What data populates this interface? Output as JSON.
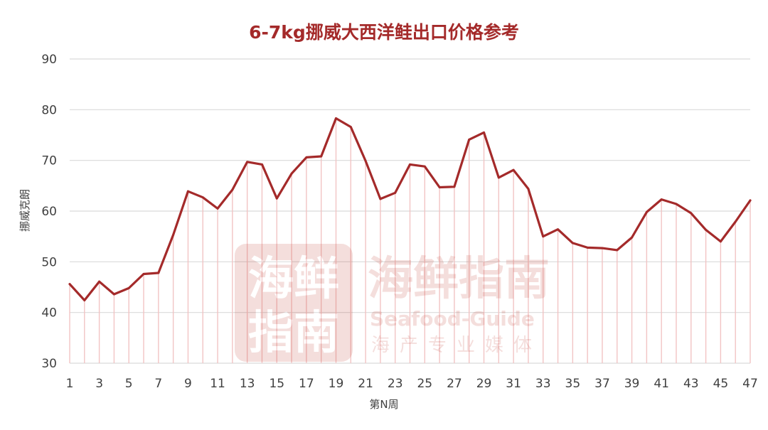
{
  "chart_data": {
    "type": "line",
    "title": "6-7kg挪威大西洋鲑出口价格参考",
    "xlabel": "第N周",
    "ylabel": "挪威克朗",
    "ylim": [
      30,
      90
    ],
    "yticks": [
      30,
      40,
      50,
      60,
      70,
      80,
      90
    ],
    "xlim": [
      1,
      47
    ],
    "xticks": [
      1,
      3,
      5,
      7,
      9,
      11,
      13,
      15,
      17,
      19,
      21,
      23,
      25,
      27,
      29,
      31,
      33,
      35,
      37,
      39,
      41,
      43,
      45,
      47
    ],
    "grid": true,
    "legend": "none",
    "colors": {
      "line": "#A42A2A",
      "title": "#A42A2A",
      "grid": "#D9D9D9",
      "drop": "#F2C4C4"
    },
    "series": [
      {
        "x": [
          1,
          2,
          3,
          4,
          5,
          6,
          7,
          8,
          9,
          10,
          11,
          12,
          13,
          14,
          15,
          16,
          17,
          18,
          19,
          20,
          21,
          22,
          23,
          24,
          25,
          26,
          27,
          28,
          29,
          30,
          31,
          32,
          33,
          34,
          35,
          36,
          37,
          38,
          39,
          40,
          41,
          42,
          43,
          44,
          45,
          46,
          47
        ],
        "values": [
          45.6,
          42.4,
          46.1,
          43.6,
          44.8,
          47.6,
          47.8,
          55.3,
          63.9,
          62.7,
          60.5,
          64.2,
          69.7,
          69.2,
          62.5,
          67.4,
          70.6,
          70.8,
          78.3,
          76.6,
          69.9,
          62.4,
          63.6,
          69.2,
          68.8,
          64.7,
          64.8,
          74.1,
          75.5,
          66.6,
          68.1,
          64.4,
          55.0,
          56.4,
          53.7,
          52.8,
          52.7,
          52.3,
          54.8,
          59.8,
          62.3,
          61.4,
          59.6,
          56.3,
          54.0,
          57.9,
          62.1
        ]
      }
    ]
  },
  "watermark": {
    "logo_text_top": "海鲜",
    "logo_text_bottom": "指南",
    "name": "海鲜指南",
    "name_en": "Seafood-Guide",
    "tagline": "海产专业媒体"
  }
}
